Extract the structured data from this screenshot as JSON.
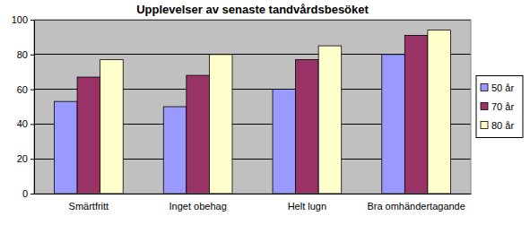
{
  "chart_data": {
    "type": "bar",
    "title": "Upplevelser av senaste tandvårdsbesöket",
    "categories": [
      "Smärtfritt",
      "Inget obehag",
      "Helt lugn",
      "Bra omhändertagande"
    ],
    "series": [
      {
        "name": "50 år",
        "color": "#9999ff",
        "values": [
          53,
          50,
          60,
          80
        ]
      },
      {
        "name": "70 år",
        "color": "#993366",
        "values": [
          67,
          68,
          77,
          91
        ]
      },
      {
        "name": "80 år",
        "color": "#ffffcc",
        "values": [
          77,
          80,
          85,
          94
        ]
      }
    ],
    "ylim": [
      0,
      100
    ],
    "yticks": [
      0,
      20,
      40,
      60,
      80,
      100
    ],
    "grid": true,
    "legend": "right"
  }
}
